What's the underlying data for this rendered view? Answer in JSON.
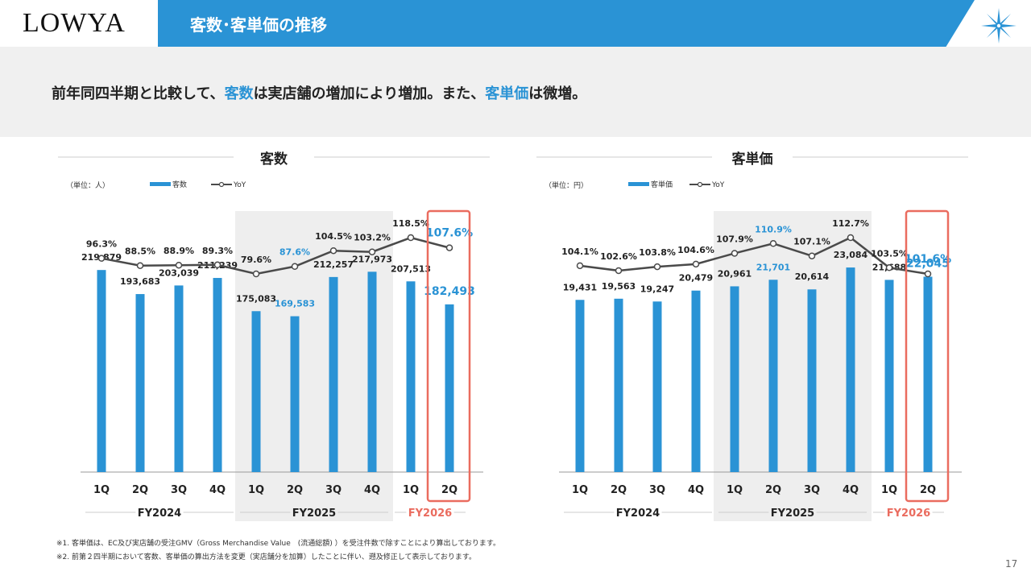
{
  "brand": "LOWYA",
  "page_title": "客数･客単価の推移",
  "subheading": {
    "part1": "前年同四半期と比較して、",
    "hl1": "客数",
    "part2": "は実店舗の増加により増加。また、",
    "hl2": "客単価",
    "part3": "は微増。"
  },
  "colors": {
    "bar": "#2a93d5",
    "line": "#4a4a4a",
    "highlight_text": "#2a93d5",
    "frame": "#ea6c5f",
    "shade": "#eeeeee"
  },
  "chart_data": [
    {
      "type": "bar",
      "title": "客数",
      "unit_label": "（単位：人）",
      "legend_bar": "客数",
      "legend_line": "YoY",
      "categories": [
        "1Q",
        "2Q",
        "3Q",
        "4Q",
        "1Q",
        "2Q",
        "3Q",
        "4Q",
        "1Q",
        "2Q"
      ],
      "groups": [
        {
          "label": "FY2024",
          "count": 4
        },
        {
          "label": "FY2025",
          "count": 4
        },
        {
          "label": "FY2026",
          "count": 2
        }
      ],
      "values": [
        219879,
        193683,
        203039,
        211239,
        175083,
        169583,
        212257,
        217973,
        207513,
        182493
      ],
      "value_labels": [
        "219,879",
        "193,683",
        "203,039",
        "211,239",
        "175,083",
        "169,583",
        "212,257",
        "217,973",
        "207,513",
        "182,493"
      ],
      "yoy": [
        96.3,
        88.5,
        88.9,
        89.3,
        79.6,
        87.6,
        104.5,
        103.2,
        118.5,
        107.6
      ],
      "yoy_labels": [
        "96.3%",
        "88.5%",
        "88.9%",
        "89.3%",
        "79.6%",
        "87.6%",
        "104.5%",
        "103.2%",
        "118.5%",
        "107.6%"
      ],
      "ylim": [
        0,
        270000
      ],
      "yoy_range": [
        79.6,
        118.5
      ],
      "blue_label_index": 5,
      "current_index": 9
    },
    {
      "type": "bar",
      "title": "客単価",
      "unit_label": "（単位：円）",
      "legend_bar": "客単価",
      "legend_line": "YoY",
      "categories": [
        "1Q",
        "2Q",
        "3Q",
        "4Q",
        "1Q",
        "2Q",
        "3Q",
        "4Q",
        "1Q",
        "2Q"
      ],
      "groups": [
        {
          "label": "FY2024",
          "count": 4
        },
        {
          "label": "FY2025",
          "count": 4
        },
        {
          "label": "FY2026",
          "count": 2
        }
      ],
      "values": [
        19431,
        19563,
        19247,
        20479,
        20961,
        21701,
        20614,
        23084,
        21688,
        22045
      ],
      "value_labels": [
        "19,431",
        "19,563",
        "19,247",
        "20,479",
        "20,961",
        "21,701",
        "20,614",
        "23,084",
        "21,688",
        "22,045"
      ],
      "yoy": [
        104.1,
        102.6,
        103.8,
        104.6,
        107.9,
        110.9,
        107.1,
        112.7,
        103.5,
        101.6
      ],
      "yoy_labels": [
        "104.1%",
        "102.6%",
        "103.8%",
        "104.6%",
        "107.9%",
        "110.9%",
        "107.1%",
        "112.7%",
        "103.5%",
        "101.6%"
      ],
      "ylim": [
        0,
        28000
      ],
      "yoy_range": [
        101.6,
        112.7
      ],
      "blue_label_index": 5,
      "current_index": 9
    }
  ],
  "notes": [
    "※1. 客単価は、EC及び実店舗の受注GMV（Gross Merchandise Value　(流通総額) ）を受注件数で除すことにより算出しております。",
    "※2. 前第２四半期において客数、客単価の算出方法を変更（実店舗分を加算）したことに伴い、遡及修正して表示しております。"
  ],
  "page_number": "17"
}
